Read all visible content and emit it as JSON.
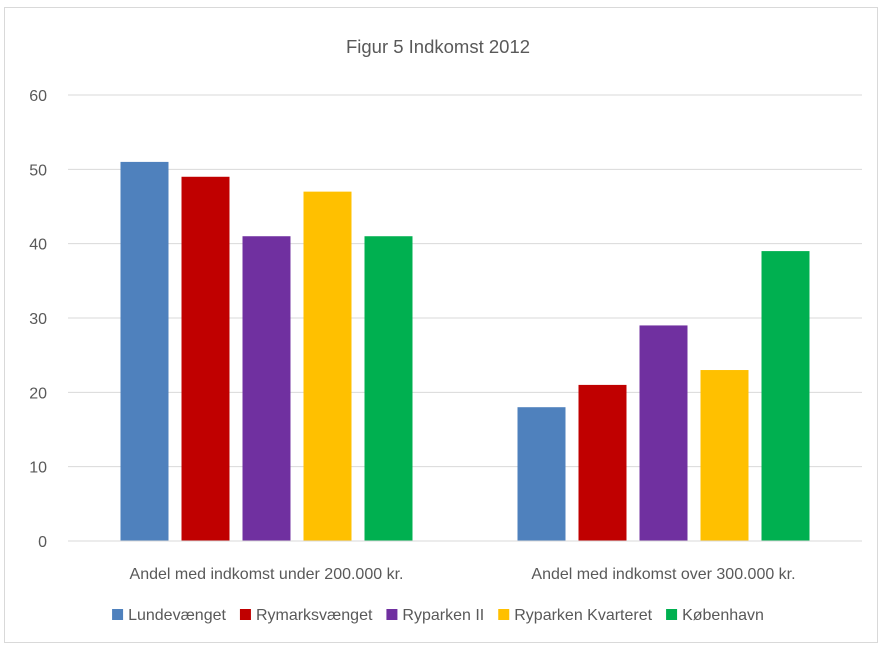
{
  "chart_data": {
    "type": "bar",
    "title": "Figur 5 Indkomst 2012",
    "xlabel": "",
    "ylabel": "",
    "categories": [
      "Andel med indkomst under 200.000 kr.",
      "Andel med indkomst over 300.000 kr."
    ],
    "ylim": [
      0,
      60
    ],
    "yticks": [
      0,
      10,
      20,
      30,
      40,
      50,
      60
    ],
    "grid": true,
    "legend_position": "bottom",
    "series": [
      {
        "name": "Lundevænget",
        "color": "#4f81bd",
        "values": [
          51,
          18
        ]
      },
      {
        "name": "Rymarksvænget",
        "color": "#c00000",
        "values": [
          49,
          21
        ]
      },
      {
        "name": "Ryparken II",
        "color": "#7030a0",
        "values": [
          41,
          29
        ]
      },
      {
        "name": "Ryparken Kvarteret",
        "color": "#ffc000",
        "values": [
          47,
          23
        ]
      },
      {
        "name": "København",
        "color": "#00b050",
        "values": [
          41,
          39
        ]
      }
    ]
  }
}
